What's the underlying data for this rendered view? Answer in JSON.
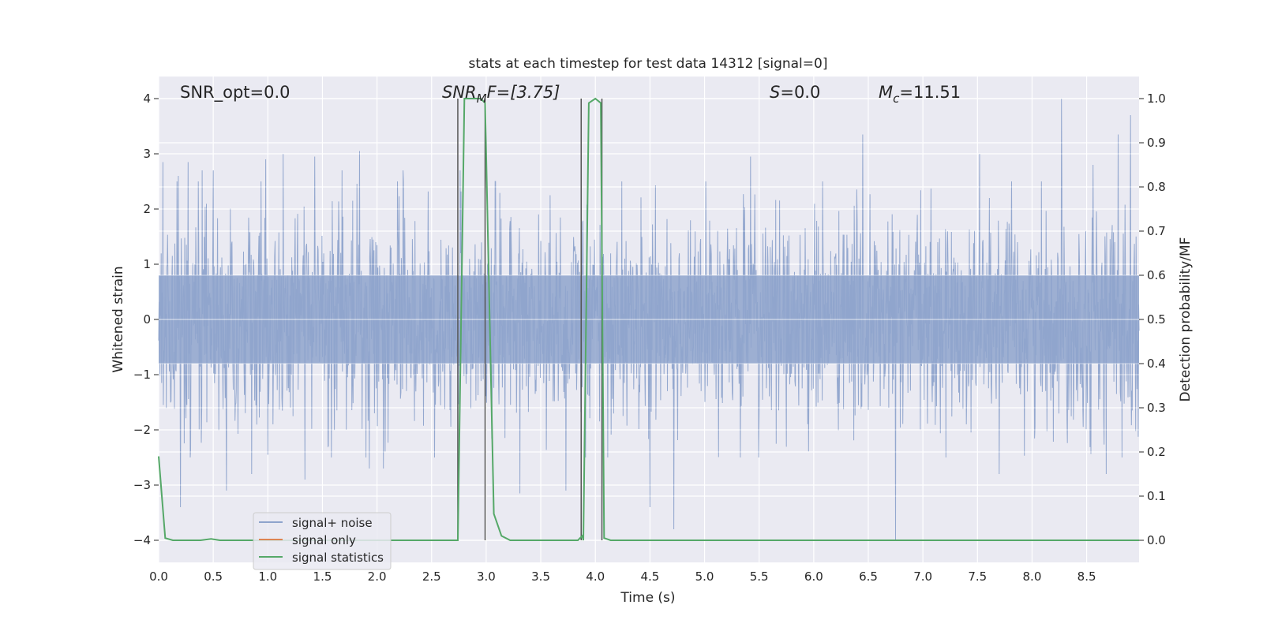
{
  "chart_data": {
    "type": "line",
    "title": "stats at each timestep for test data 14312 [signal=0]",
    "xlabel": "Time (s)",
    "ylabel": "Whitened strain",
    "y2label": "Detection probability/MF",
    "xlim": [
      0.0,
      8.98
    ],
    "ylim": [
      -4.4,
      4.4
    ],
    "y2lim": [
      -0.05,
      1.05
    ],
    "x_ticks": [
      0.0,
      0.5,
      1.0,
      1.5,
      2.0,
      2.5,
      3.0,
      3.5,
      4.0,
      4.5,
      5.0,
      5.5,
      6.0,
      6.5,
      7.0,
      7.5,
      8.0,
      8.5
    ],
    "x_tick_labels": [
      "0.0",
      "0.5",
      "1.0",
      "1.5",
      "2.0",
      "2.5",
      "3.0",
      "3.5",
      "4.0",
      "4.5",
      "5.0",
      "5.5",
      "6.0",
      "6.5",
      "7.0",
      "7.5",
      "8.0",
      "8.5"
    ],
    "y_ticks": [
      4,
      3,
      2,
      1,
      0,
      -1,
      -2,
      -3,
      -4
    ],
    "y_tick_labels": [
      "4",
      "3",
      "2",
      "1",
      "0",
      "−1",
      "−2",
      "−3",
      "−4"
    ],
    "y2_ticks": [
      1.0,
      0.9,
      0.8,
      0.7,
      0.6,
      0.5,
      0.4,
      0.3,
      0.2,
      0.1,
      0.0
    ],
    "y2_tick_labels": [
      "1.0",
      "0.9",
      "0.8",
      "0.7",
      "0.6",
      "0.5",
      "0.4",
      "0.3",
      "0.2",
      "0.1",
      "0.0"
    ],
    "grid": true,
    "legend_placement": "lower-left",
    "annotations": {
      "snr_opt": "SNR_opt=0.0",
      "snr_mf_prefix": "SNR",
      "snr_mf_sub": "M",
      "snr_mf_suffix": "F=[3.75]",
      "s_var": "S",
      "s_value": "=0.0",
      "mc_var": "M",
      "mc_sub": "c",
      "mc_value": "=11.51"
    },
    "series": [
      {
        "name": "signal+ noise",
        "color": "#8fa4cc",
        "kind": "noise",
        "amplitude_typical": 1.6,
        "amplitude_peak": 4.0,
        "peaks": [
          [
            0.04,
            2.85
          ],
          [
            0.18,
            2.6
          ],
          [
            0.2,
            -3.4
          ],
          [
            0.27,
            2.85
          ],
          [
            0.29,
            -2.5
          ],
          [
            0.4,
            2.7
          ],
          [
            0.5,
            -3.1
          ],
          [
            0.5,
            2.7
          ],
          [
            0.62,
            -3.1
          ],
          [
            0.85,
            -2.8
          ],
          [
            0.98,
            2.9
          ],
          [
            1.14,
            3.0
          ],
          [
            1.34,
            -2.9
          ],
          [
            1.43,
            2.95
          ],
          [
            1.55,
            -2.3
          ],
          [
            1.68,
            2.7
          ],
          [
            1.84,
            3.05
          ],
          [
            1.93,
            2.9
          ],
          [
            1.93,
            -2.7
          ],
          [
            2.06,
            -2.7
          ],
          [
            2.24,
            2.7
          ],
          [
            2.76,
            2.7
          ],
          [
            3.08,
            2.5
          ],
          [
            3.31,
            -3.15
          ],
          [
            3.73,
            -3.1
          ],
          [
            3.91,
            -2.5
          ],
          [
            4.5,
            -3.4
          ],
          [
            4.72,
            -3.8
          ],
          [
            5.42,
            2.95
          ],
          [
            6.45,
            3.35
          ],
          [
            6.75,
            -4.0
          ],
          [
            7.52,
            3.0
          ],
          [
            7.7,
            -2.8
          ],
          [
            8.27,
            4.0
          ],
          [
            8.56,
            2.8
          ],
          [
            8.68,
            -2.8
          ],
          [
            8.79,
            3.35
          ],
          [
            8.9,
            3.7
          ]
        ]
      },
      {
        "name": "signal only",
        "color": "#dd8452",
        "values": []
      },
      {
        "name": "signal statistics",
        "color": "#55a868",
        "axis": "right",
        "x": [
          0.0,
          0.06,
          0.13,
          0.25,
          0.38,
          0.48,
          0.56,
          0.7,
          1.0,
          2.5,
          2.74,
          2.8,
          2.95,
          2.99,
          3.07,
          3.14,
          3.22,
          3.3,
          3.6,
          3.84,
          3.88,
          3.89,
          3.94,
          4.0,
          4.05,
          4.08,
          4.14,
          4.2,
          5.0,
          8.98
        ],
        "y": [
          0.19,
          0.005,
          0.0,
          0.0,
          0.0,
          0.003,
          0.0,
          0.0,
          0.0,
          0.0,
          0.0,
          1.0,
          1.0,
          0.99,
          0.06,
          0.01,
          0.0,
          0.0,
          0.0,
          0.0,
          0.01,
          0.0,
          0.99,
          1.0,
          0.99,
          0.005,
          0.0,
          0.0,
          0.0,
          0.0
        ]
      }
    ],
    "vertical_markers": [
      2.74,
      2.99,
      3.87,
      4.06
    ]
  }
}
